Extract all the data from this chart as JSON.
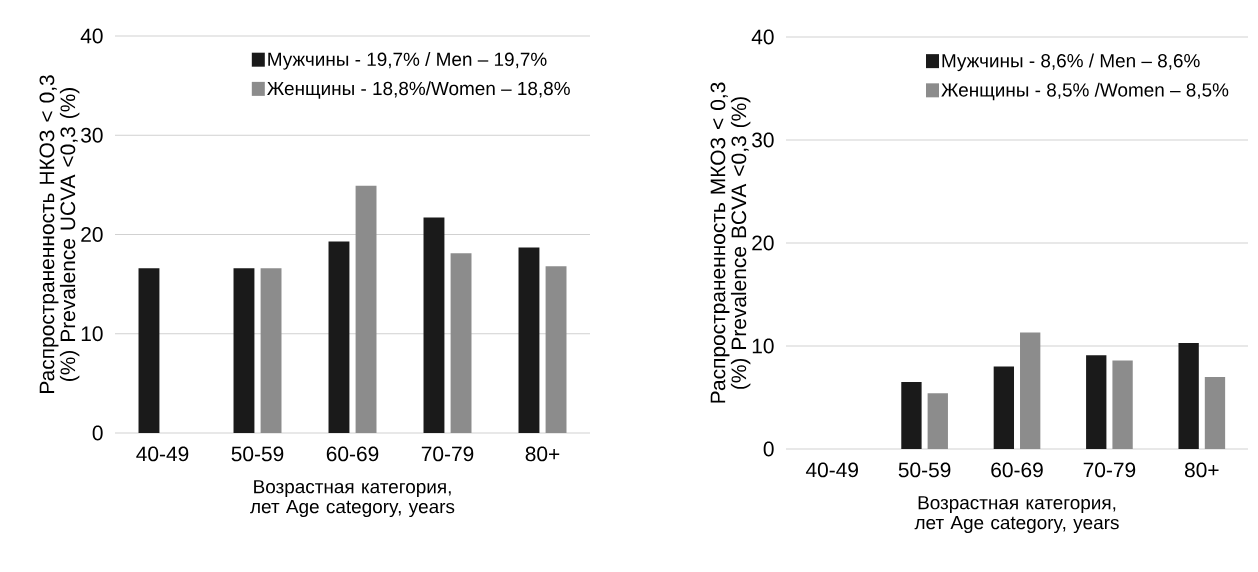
{
  "chart_data": [
    {
      "type": "bar",
      "xlabel": "Возрастная категория, лет Age category, years",
      "ylabel": "Распространенность  НКОЗ < 0,3 (%) Prevalence UCVA <0,3 (%)",
      "categories": [
        "40-49",
        "50-59",
        "60-69",
        "70-79",
        "80+"
      ],
      "series": [
        {
          "name": "Мужчины - 19,7% / Men – 19,7%",
          "color": "#1a1a1a",
          "values": [
            16.6,
            16.6,
            19.3,
            21.7,
            18.7
          ]
        },
        {
          "name": "Женщины - 18,8%/Women – 18,8%",
          "color": "#8c8c8c",
          "values": [
            null,
            16.6,
            24.9,
            18.1,
            16.8
          ]
        }
      ],
      "ylim": [
        0,
        40
      ],
      "yticks": [
        0,
        10,
        20,
        30,
        40
      ],
      "grid": "y",
      "legend": "top right"
    },
    {
      "type": "bar",
      "xlabel": "Возрастная категория, лет Age category, years",
      "ylabel": "Распространенность  МКОЗ < 0,3 (%) Prevalence BCVA <0,3 (%)",
      "categories": [
        "40-49",
        "50-59",
        "60-69",
        "70-79",
        "80+"
      ],
      "series": [
        {
          "name": "Мужчины - 8,6%  / Men – 8,6%",
          "color": "#1a1a1a",
          "values": [
            null,
            6.5,
            8.0,
            9.1,
            10.3
          ]
        },
        {
          "name": "Женщины - 8,5% /Women – 8,5%",
          "color": "#8c8c8c",
          "values": [
            null,
            5.4,
            11.3,
            8.6,
            7.0
          ]
        }
      ],
      "ylim": [
        0,
        40
      ],
      "yticks": [
        0,
        10,
        20,
        30,
        40
      ],
      "grid": "y",
      "legend": "top right"
    }
  ]
}
